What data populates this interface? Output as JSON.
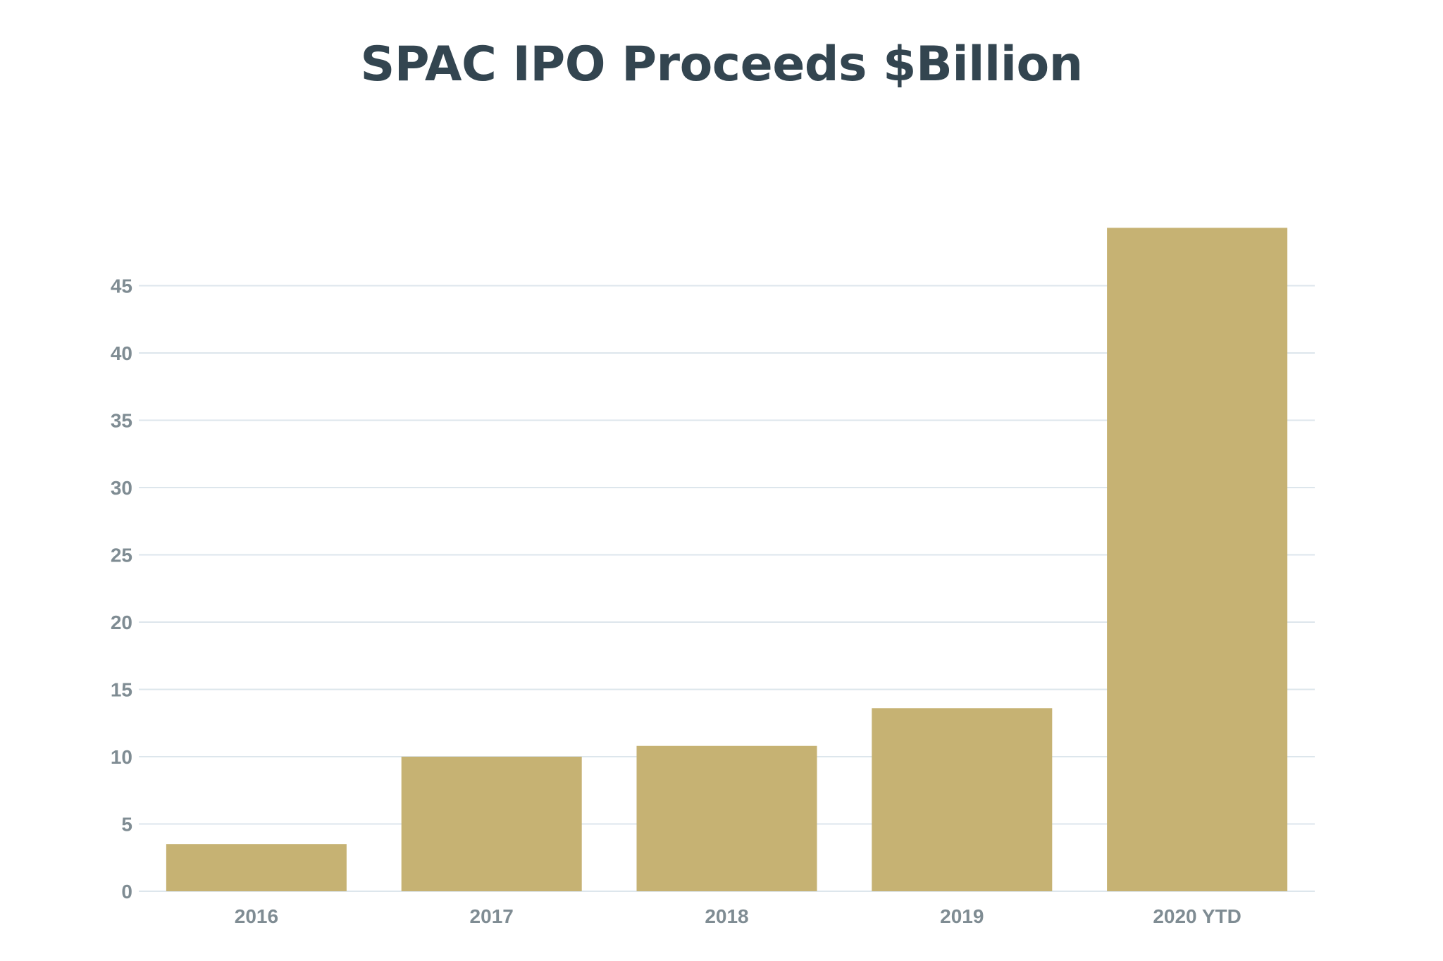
{
  "chart_data": {
    "type": "bar",
    "title": "SPAC IPO Proceeds $Billion",
    "xlabel": "",
    "ylabel": "",
    "categories": [
      "2016",
      "2017",
      "2018",
      "2019",
      "2020 YTD"
    ],
    "values": [
      3.5,
      10.0,
      10.8,
      13.6,
      49.3
    ],
    "yticks": [
      "0",
      "5",
      "10",
      "15",
      "20",
      "25",
      "30",
      "35",
      "40",
      "45"
    ],
    "ylim": [
      0,
      50
    ],
    "grid": true,
    "legend": "none",
    "colors": {
      "bar": "#c6b273",
      "grid": "#dde6ec",
      "axis_text": "#7f8c93",
      "title": "#334550"
    }
  }
}
